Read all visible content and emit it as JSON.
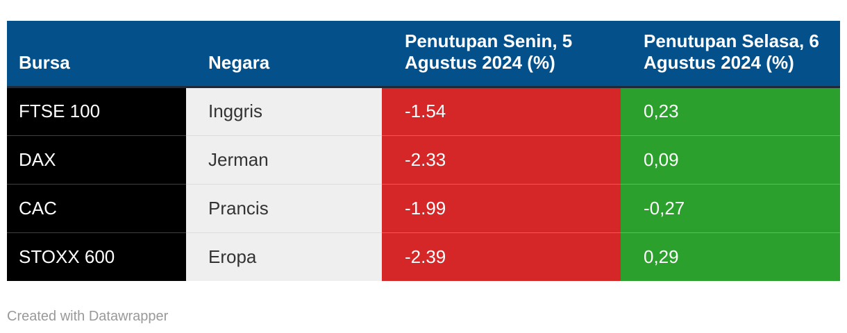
{
  "table": {
    "header": [
      "Bursa",
      "Negara",
      "Penutupan Senin, 5 Agustus 2024 (%)",
      "Penutupan Selasa, 6 Agustus 2024 (%)"
    ],
    "rows": [
      [
        "FTSE 100",
        "Inggris",
        "-1.54",
        "0,23"
      ],
      [
        "DAX",
        "Jerman",
        "-2.33",
        "0,09"
      ],
      [
        "CAC",
        "Prancis",
        "-1.99",
        "-0,27"
      ],
      [
        "STOXX 600",
        "Eropa",
        "-2.39",
        "0,29"
      ]
    ]
  },
  "footer": "Created with Datawrapper"
}
